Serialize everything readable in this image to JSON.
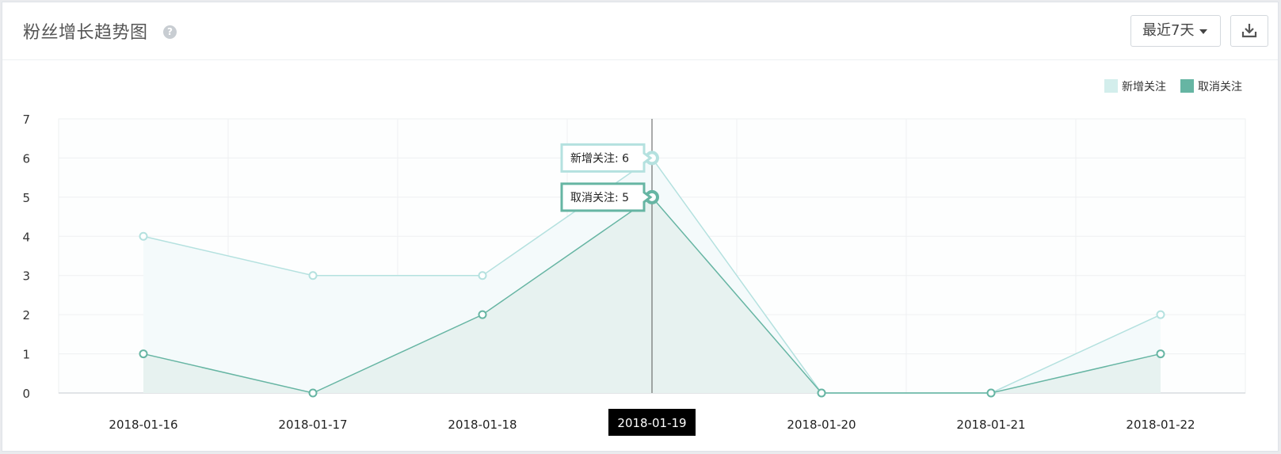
{
  "header": {
    "title": "粉丝增长趋势图",
    "help_icon": "question-circle-icon",
    "range_label": "最近7天",
    "download_icon": "download-icon"
  },
  "colors": {
    "series_new": "#b4e1df",
    "series_new_fill": "#f4fafb",
    "series_unfollow": "#66b5a3",
    "series_unfollow_fill": "#e7f2f0",
    "crosshair": "#555555",
    "grid": "#eef0f2"
  },
  "chart_data": {
    "type": "area",
    "categories": [
      "2018-01-16",
      "2018-01-17",
      "2018-01-18",
      "2018-01-19",
      "2018-01-20",
      "2018-01-21",
      "2018-01-22"
    ],
    "series": [
      {
        "name": "新增关注",
        "values": [
          4,
          3,
          3,
          6,
          0,
          0,
          2
        ]
      },
      {
        "name": "取消关注",
        "values": [
          1,
          0,
          2,
          5,
          0,
          0,
          1
        ]
      }
    ],
    "y_ticks": [
      "0",
      "1",
      "2",
      "3",
      "4",
      "5",
      "6",
      "7"
    ],
    "ylim": [
      0,
      7
    ],
    "grid": true,
    "legend_position": "top-right",
    "highlight_index": 3,
    "tooltips": [
      {
        "series": "新增关注",
        "text": "新增关注: 6"
      },
      {
        "series": "取消关注",
        "text": "取消关注: 5"
      }
    ],
    "highlight_label": "2018-01-19"
  }
}
